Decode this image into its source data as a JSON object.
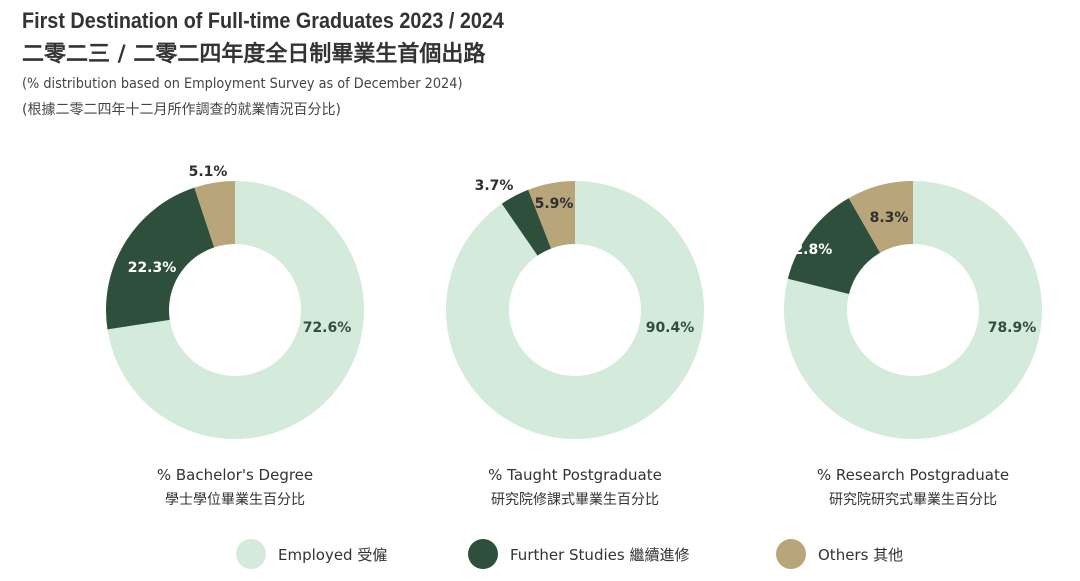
{
  "header": {
    "title_en": "First Destination of Full-time Graduates 2023 / 2024",
    "title_zh": "二零二三 / 二零二四年度全日制畢業生首個出路",
    "subtitle_en": "(% distribution based on Employment Survey as of December 2024)",
    "subtitle_zh": "(根據二零二四年十二月所作調查的就業情況百分比)"
  },
  "colors": {
    "employed": "#d4eadb",
    "further_studies": "#2f4f3d",
    "others": "#b8a67a"
  },
  "chart_data": [
    {
      "type": "pie",
      "title": "% Bachelor's Degree",
      "title_zh": "學士學位畢業生百分比",
      "categories": [
        "Employed",
        "Further Studies",
        "Others"
      ],
      "values": [
        72.6,
        22.3,
        5.1
      ],
      "labels": [
        "72.6%",
        "22.3%",
        "5.1%"
      ]
    },
    {
      "type": "pie",
      "title": "% Taught Postgraduate",
      "title_zh": "研究院修課式畢業生百分比",
      "categories": [
        "Employed",
        "Further Studies",
        "Others"
      ],
      "values": [
        90.4,
        3.7,
        5.9
      ],
      "labels": [
        "90.4%",
        "3.7%",
        "5.9%"
      ]
    },
    {
      "type": "pie",
      "title": "% Research Postgraduate",
      "title_zh": "研究院研究式畢業生百分比",
      "categories": [
        "Employed",
        "Further Studies",
        "Others"
      ],
      "values": [
        78.9,
        12.8,
        8.3
      ],
      "labels": [
        "78.9%",
        "12.8%",
        "8.3%"
      ]
    }
  ],
  "legend": [
    {
      "key": "employed",
      "label": "Employed 受僱"
    },
    {
      "key": "further_studies",
      "label": "Further Studies 繼續進修"
    },
    {
      "key": "others",
      "label": "Others 其他"
    }
  ]
}
